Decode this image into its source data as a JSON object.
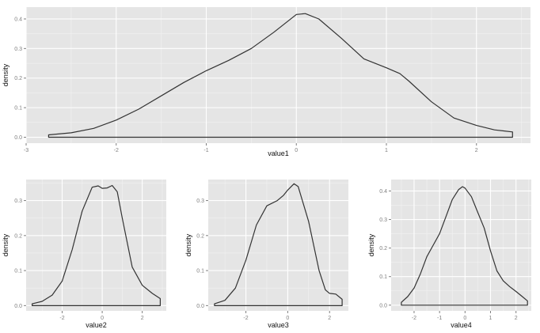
{
  "chart_data": [
    {
      "type": "area",
      "xlabel": "value1",
      "ylabel": "density",
      "xlim": [
        -3,
        2.6
      ],
      "ylim": [
        -0.02,
        0.44
      ],
      "xticks": [
        -3,
        -2,
        -1,
        0,
        1,
        2
      ],
      "yticks": [
        0.0,
        0.1,
        0.2,
        0.3,
        0.4
      ],
      "ytick_labels": [
        "0.0",
        "0.1",
        "0.2",
        "0.3",
        "0.4"
      ],
      "grid": true,
      "points": [
        [
          -2.75,
          0.008
        ],
        [
          -2.5,
          0.015
        ],
        [
          -2.25,
          0.03
        ],
        [
          -2.0,
          0.058
        ],
        [
          -1.75,
          0.095
        ],
        [
          -1.5,
          0.14
        ],
        [
          -1.25,
          0.185
        ],
        [
          -1.0,
          0.225
        ],
        [
          -0.75,
          0.26
        ],
        [
          -0.5,
          0.3
        ],
        [
          -0.25,
          0.355
        ],
        [
          0.0,
          0.415
        ],
        [
          0.1,
          0.418
        ],
        [
          0.25,
          0.4
        ],
        [
          0.5,
          0.335
        ],
        [
          0.75,
          0.265
        ],
        [
          1.0,
          0.235
        ],
        [
          1.15,
          0.215
        ],
        [
          1.25,
          0.19
        ],
        [
          1.5,
          0.12
        ],
        [
          1.75,
          0.065
        ],
        [
          2.0,
          0.04
        ],
        [
          2.2,
          0.025
        ],
        [
          2.4,
          0.018
        ]
      ]
    },
    {
      "type": "area",
      "xlabel": "value2",
      "ylabel": "density",
      "xlim": [
        -3.8,
        3.2
      ],
      "ylim": [
        -0.015,
        0.36
      ],
      "xticks": [
        -2,
        0,
        2
      ],
      "yticks": [
        0.0,
        0.1,
        0.2,
        0.3
      ],
      "ytick_labels": [
        "0.0",
        "0.1",
        "0.2",
        "0.3"
      ],
      "grid": true,
      "points": [
        [
          -3.5,
          0.005
        ],
        [
          -3.0,
          0.012
        ],
        [
          -2.5,
          0.03
        ],
        [
          -2.0,
          0.07
        ],
        [
          -1.5,
          0.16
        ],
        [
          -1.0,
          0.27
        ],
        [
          -0.5,
          0.338
        ],
        [
          -0.2,
          0.342
        ],
        [
          0.0,
          0.335
        ],
        [
          0.25,
          0.336
        ],
        [
          0.5,
          0.343
        ],
        [
          0.75,
          0.325
        ],
        [
          1.0,
          0.25
        ],
        [
          1.5,
          0.11
        ],
        [
          2.0,
          0.058
        ],
        [
          2.5,
          0.035
        ],
        [
          2.9,
          0.02
        ]
      ]
    },
    {
      "type": "area",
      "xlabel": "value3",
      "ylabel": "density",
      "xlim": [
        -3.8,
        2.9
      ],
      "ylim": [
        -0.015,
        0.36
      ],
      "xticks": [
        -2,
        0,
        2
      ],
      "yticks": [
        0.0,
        0.1,
        0.2,
        0.3
      ],
      "ytick_labels": [
        "0.0",
        "0.1",
        "0.2",
        "0.3"
      ],
      "grid": true,
      "points": [
        [
          -3.5,
          0.005
        ],
        [
          -3.0,
          0.015
        ],
        [
          -2.5,
          0.05
        ],
        [
          -2.0,
          0.13
        ],
        [
          -1.5,
          0.23
        ],
        [
          -1.0,
          0.285
        ],
        [
          -0.5,
          0.3
        ],
        [
          -0.2,
          0.315
        ],
        [
          0.0,
          0.33
        ],
        [
          0.3,
          0.348
        ],
        [
          0.5,
          0.34
        ],
        [
          1.0,
          0.24
        ],
        [
          1.5,
          0.1
        ],
        [
          1.8,
          0.045
        ],
        [
          2.0,
          0.035
        ],
        [
          2.3,
          0.033
        ],
        [
          2.6,
          0.018
        ]
      ]
    },
    {
      "type": "area",
      "xlabel": "value4",
      "ylabel": "density",
      "xlim": [
        -2.9,
        2.6
      ],
      "ylim": [
        -0.02,
        0.44
      ],
      "xticks": [
        -2,
        -1,
        0,
        1,
        2
      ],
      "yticks": [
        0.0,
        0.1,
        0.2,
        0.3,
        0.4
      ],
      "ytick_labels": [
        "0.0",
        "0.1",
        "0.2",
        "0.3",
        "0.4"
      ],
      "grid": true,
      "points": [
        [
          -2.5,
          0.01
        ],
        [
          -2.25,
          0.03
        ],
        [
          -2.0,
          0.06
        ],
        [
          -1.75,
          0.11
        ],
        [
          -1.5,
          0.17
        ],
        [
          -1.25,
          0.21
        ],
        [
          -1.0,
          0.25
        ],
        [
          -0.75,
          0.31
        ],
        [
          -0.5,
          0.37
        ],
        [
          -0.25,
          0.405
        ],
        [
          -0.1,
          0.415
        ],
        [
          0.0,
          0.41
        ],
        [
          0.25,
          0.38
        ],
        [
          0.5,
          0.325
        ],
        [
          0.75,
          0.27
        ],
        [
          1.0,
          0.19
        ],
        [
          1.25,
          0.12
        ],
        [
          1.5,
          0.085
        ],
        [
          1.75,
          0.065
        ],
        [
          2.0,
          0.048
        ],
        [
          2.25,
          0.03
        ],
        [
          2.45,
          0.015
        ]
      ]
    }
  ]
}
